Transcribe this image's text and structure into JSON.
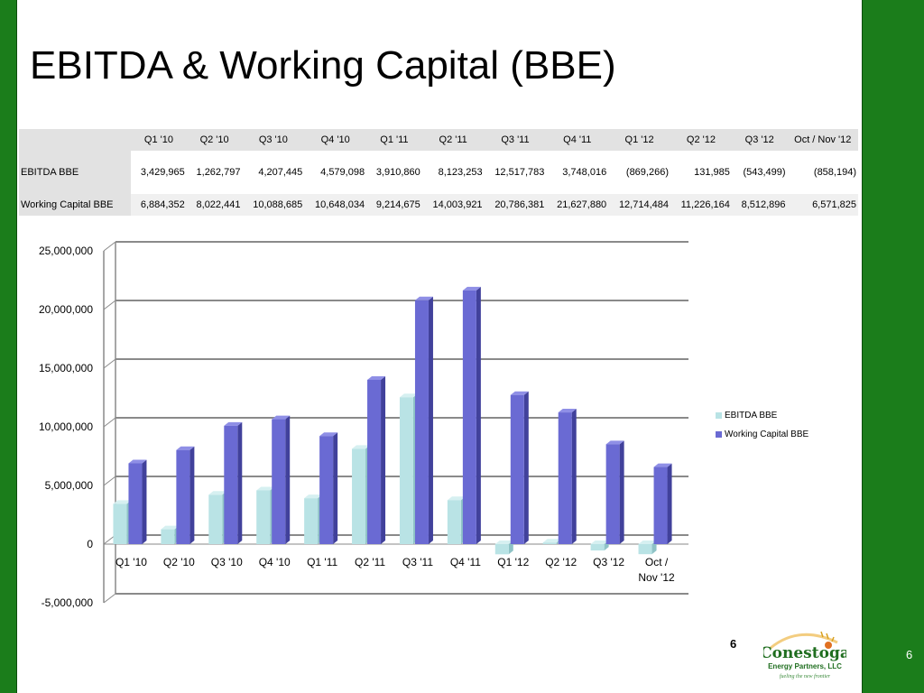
{
  "slide": {
    "title": "EBITDA & Working Capital (BBE)",
    "page_number": "6",
    "page_number_corner": "6"
  },
  "table": {
    "headers": [
      "Q1 '10",
      "Q2 '10",
      "Q3 '10",
      "Q4 '10",
      "Q1 '11",
      "Q2 '11",
      "Q3 '11",
      "Q4 '11",
      "Q1 '12",
      "Q2 '12",
      "Q3 '12",
      "Oct / Nov '12"
    ],
    "rows": [
      {
        "label": "EBITDA BBE",
        "cells": [
          "3,429,965",
          "1,262,797",
          "4,207,445",
          "4,579,098",
          "3,910,860",
          "8,123,253",
          "12,517,783",
          "3,748,016",
          "(869,266)",
          "131,985",
          "(543,499)",
          "(858,194)"
        ]
      },
      {
        "label": "Working Capital BBE",
        "cells": [
          "6,884,352",
          "8,022,441",
          "10,088,685",
          "10,648,034",
          "9,214,675",
          "14,003,921",
          "20,786,381",
          "21,627,880",
          "12,714,484",
          "11,226,164",
          "8,512,896",
          "6,571,825"
        ]
      }
    ]
  },
  "chart_data": {
    "type": "bar",
    "categories": [
      "Q1 '10",
      "Q2 '10",
      "Q3 '10",
      "Q4 '10",
      "Q1 '11",
      "Q2 '11",
      "Q3 '11",
      "Q4 '11",
      "Q1 '12",
      "Q2 '12",
      "Q3 '12",
      "Oct / Nov '12"
    ],
    "category_lines": [
      [
        "Q1 '10"
      ],
      [
        "Q2 '10"
      ],
      [
        "Q3 '10"
      ],
      [
        "Q4 '10"
      ],
      [
        "Q1 '11"
      ],
      [
        "Q2 '11"
      ],
      [
        "Q3 '11"
      ],
      [
        "Q4 '11"
      ],
      [
        "Q1 '12"
      ],
      [
        "Q2 '12"
      ],
      [
        "Q3 '12"
      ],
      [
        "Oct /",
        "Nov '12"
      ]
    ],
    "series": [
      {
        "name": "EBITDA BBE",
        "color": "#b9e3e5",
        "side_color": "#8fc3c6",
        "top_color": "#d6f0f1",
        "values": [
          3429965,
          1262797,
          4207445,
          4579098,
          3910860,
          8123253,
          12517783,
          3748016,
          -869266,
          131985,
          -543499,
          -858194
        ]
      },
      {
        "name": "Working Capital BBE",
        "color": "#6a6ad3",
        "side_color": "#41419b",
        "top_color": "#8f8fe6",
        "values": [
          6884352,
          8022441,
          10088685,
          10648034,
          9214675,
          14003921,
          20786381,
          21627880,
          12714484,
          11226164,
          8512896,
          6571825
        ]
      }
    ],
    "ylim": [
      -5000000,
      25000000
    ],
    "yticks": [
      -5000000,
      0,
      5000000,
      10000000,
      15000000,
      20000000,
      25000000
    ],
    "ytick_labels": [
      "-5,000,000",
      "0",
      "5,000,000",
      "10,000,000",
      "15,000,000",
      "20,000,000",
      "25,000,000"
    ],
    "grid": true,
    "legend_position": "right",
    "title": "",
    "xlabel": "",
    "ylabel": ""
  },
  "logo": {
    "name": "Conestoga",
    "line2": "Energy Partners, LLC",
    "tagline": "fueling the new frontier"
  }
}
